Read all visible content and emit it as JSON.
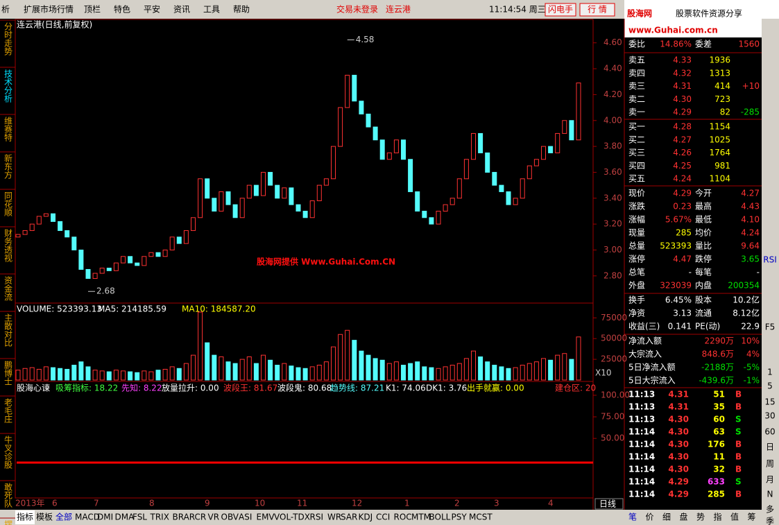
{
  "menu": [
    "析",
    "扩展市场行情",
    "顶栏",
    "特色",
    "平安",
    "资讯",
    "工具",
    "帮助"
  ],
  "status": {
    "login": "交易未登录",
    "stock": "连云港",
    "time": "11:14:54 周三",
    "buttons": [
      "闪电手",
      "行 情"
    ]
  },
  "logo": {
    "name": "股海网",
    "slogan": "股票软件资源分享",
    "url": "www.Guhai.com.cn"
  },
  "left_tabs": [
    "分时走势",
    "技术分析",
    "维赛特",
    "新东方",
    "同花顺",
    "财务透视",
    "资金流",
    "主散对比",
    "鹏博士",
    "老毛庄",
    "牛叉诊股",
    "敢死队",
    "摆渡1"
  ],
  "chart_data": {
    "type": "candlestick",
    "title": "连云港(日线,前复权)",
    "watermark": "股海网提供 Www.Guhai.Com.CN",
    "first_open": 3.1,
    "closes": [
      3.12,
      3.15,
      3.2,
      3.26,
      3.28,
      3.22,
      3.15,
      3.1,
      3.0,
      2.85,
      2.78,
      2.82,
      2.86,
      2.84,
      2.9,
      2.95,
      2.9,
      2.88,
      2.95,
      2.98,
      2.95,
      3.0,
      3.1,
      3.05,
      3.15,
      3.25,
      3.55,
      3.4,
      3.3,
      3.45,
      3.35,
      3.25,
      3.4,
      3.5,
      3.42,
      3.6,
      3.5,
      3.4,
      3.48,
      3.35,
      3.3,
      3.25,
      3.38,
      3.5,
      3.55,
      3.8,
      4.1,
      4.35,
      4.15,
      4.05,
      3.95,
      3.85,
      3.7,
      3.75,
      3.85,
      3.7,
      3.45,
      3.3,
      3.25,
      3.2,
      3.3,
      3.35,
      3.4,
      3.55,
      3.7,
      3.9,
      3.75,
      3.6,
      3.5,
      3.45,
      3.35,
      3.4,
      3.55,
      3.65,
      3.7,
      3.8,
      3.75,
      3.9,
      4.0,
      3.85,
      4.29
    ],
    "ylim": [
      2.59,
      4.77
    ],
    "yticks": [
      {
        "value": 4.6,
        "label": "4.60"
      },
      {
        "value": 4.4,
        "label": "4.40"
      },
      {
        "value": 4.2,
        "label": "4.20"
      },
      {
        "value": 4.0,
        "label": "4.00"
      },
      {
        "value": 3.8,
        "label": "3.80"
      },
      {
        "value": 3.6,
        "label": "3.60"
      },
      {
        "value": 3.4,
        "label": "3.40"
      },
      {
        "value": 3.2,
        "label": "3.20"
      },
      {
        "value": 3.0,
        "label": "3.00"
      },
      {
        "value": 2.8,
        "label": "2.80"
      }
    ],
    "high": {
      "index": 47,
      "value": 4.58
    },
    "low": {
      "index": 10,
      "value": 2.68
    },
    "volume": {
      "header": [
        "VOLUME: 523393.13",
        "MA5: 214185.59",
        "MA10: 184587.20"
      ],
      "scale_note": "X10",
      "values": [
        12000,
        14000,
        15000,
        13000,
        16000,
        15000,
        14000,
        13000,
        18000,
        22000,
        16000,
        12000,
        11000,
        10000,
        12000,
        11000,
        10000,
        9000,
        11000,
        10000,
        12000,
        13000,
        16000,
        14000,
        20000,
        30000,
        82000,
        45000,
        30000,
        28000,
        22000,
        20000,
        25000,
        28000,
        20000,
        30000,
        24000,
        18000,
        20000,
        17000,
        15000,
        14000,
        16000,
        18000,
        22000,
        40000,
        55000,
        60000,
        48000,
        35000,
        30000,
        26000,
        24000,
        20000,
        22000,
        18000,
        20000,
        22000,
        16000,
        15000,
        14000,
        16000,
        18000,
        20000,
        26000,
        35000,
        28000,
        22000,
        18000,
        16000,
        14000,
        15000,
        18000,
        20000,
        22000,
        26000,
        24000,
        30000,
        32000,
        25000,
        52000
      ],
      "ylim": [
        0,
        92000
      ],
      "yticks": [
        75000,
        50000,
        25000
      ]
    },
    "indicator": {
      "header": [
        "股海心谏",
        "吸筹指标: 18.22",
        "先知: 8.22",
        "放量拉升: 0.00",
        "波段王: 81.67",
        "波段鬼: 80.68",
        "趋势线: 87.21",
        "K1: 74.06",
        "DK1: 3.76",
        "出手就赢: 0.00",
        "建仓区: 20"
      ],
      "ylim": [
        -19,
        112
      ],
      "yticks": [
        {
          "value": 100,
          "label": "100.00"
        },
        {
          "value": 75,
          "label": "75.00"
        },
        {
          "value": 50,
          "label": "50.00"
        }
      ]
    },
    "x_labels": [
      "2013年",
      "6",
      "7",
      "8",
      "9",
      "10",
      "11",
      "12",
      "1",
      "2",
      "3",
      "4"
    ],
    "period": "日线"
  },
  "order_book": {
    "ratio": [
      "委比",
      "14.86%",
      "委差",
      "1560"
    ],
    "sell": [
      [
        "卖五",
        "4.33",
        "1936",
        ""
      ],
      [
        "卖四",
        "4.32",
        "1313",
        ""
      ],
      [
        "卖三",
        "4.31",
        "414",
        "+10"
      ],
      [
        "卖二",
        "4.30",
        "723",
        ""
      ],
      [
        "卖一",
        "4.29",
        "82",
        "-285"
      ]
    ],
    "buy": [
      [
        "买一",
        "4.28",
        "1154"
      ],
      [
        "买二",
        "4.27",
        "1025"
      ],
      [
        "买三",
        "4.26",
        "1764"
      ],
      [
        "买四",
        "4.25",
        "981"
      ],
      [
        "买五",
        "4.24",
        "1104"
      ]
    ]
  },
  "quote": [
    [
      "现价",
      "4.29",
      "今开",
      "4.27"
    ],
    [
      "涨跌",
      "0.23",
      "最高",
      "4.43"
    ],
    [
      "涨幅",
      "5.67%",
      "最低",
      "4.10"
    ],
    [
      "现量",
      "285",
      "均价",
      "4.24"
    ],
    [
      "总量",
      "523393",
      "量比",
      "9.64"
    ],
    [
      "涨停",
      "4.47",
      "跌停",
      "3.65"
    ],
    [
      "总笔",
      "-",
      "每笔",
      "-"
    ],
    [
      "外盘",
      "323039",
      "内盘",
      "200354"
    ],
    [
      "换手",
      "6.45%",
      "股本",
      "10.2亿"
    ],
    [
      "净资",
      "3.13",
      "流通",
      "8.12亿"
    ],
    [
      "收益(三)",
      "0.141",
      "PE(动)",
      "22.9"
    ]
  ],
  "flow": [
    [
      "净流入额",
      "2290万",
      "10%"
    ],
    [
      "大宗流入",
      "848.6万",
      "4%"
    ],
    [
      "5日净流入额",
      "-2188万",
      "-5%"
    ],
    [
      "5日大宗流入",
      "-439.6万",
      "-1%"
    ]
  ],
  "trades": [
    [
      "11:13",
      "4.31",
      "51",
      "B"
    ],
    [
      "11:13",
      "4.31",
      "35",
      "B"
    ],
    [
      "11:13",
      "4.30",
      "60",
      "S"
    ],
    [
      "11:14",
      "4.30",
      "63",
      "S"
    ],
    [
      "11:14",
      "4.30",
      "176",
      "B"
    ],
    [
      "11:14",
      "4.30",
      "11",
      "B"
    ],
    [
      "11:14",
      "4.30",
      "32",
      "B"
    ],
    [
      "11:14",
      "4.29",
      "633",
      "S"
    ],
    [
      "11:14",
      "4.29",
      "285",
      "B"
    ]
  ],
  "bottom_tabs": [
    "指标",
    "模板",
    "全部",
    "MACD",
    "DMI",
    "DMA",
    "FSL",
    "TRIX",
    "BRAR",
    "CR",
    "VR",
    "OBV",
    "ASI",
    "EMV",
    "VOL-TDX",
    "RSI",
    "WR",
    "SAR",
    "KDJ",
    "CCI",
    "ROC",
    "MTM",
    "BOLL",
    "PSY",
    "MCST"
  ],
  "panel_tabs": [
    "笔",
    "价",
    "细",
    "盘",
    "势",
    "指",
    "值",
    "筹"
  ],
  "side_icons": [
    "RSI",
    "F5",
    "1",
    "5",
    "15",
    "30",
    "60",
    "日",
    "周",
    "月",
    "N",
    "多",
    "季"
  ]
}
